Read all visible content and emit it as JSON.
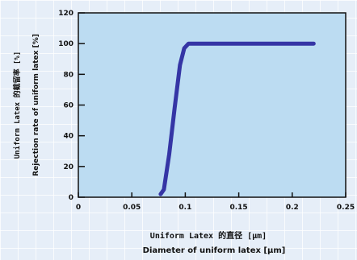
{
  "chart_data": {
    "type": "line",
    "xlabel_jp": "Uniform Latex 的直径 [μm]",
    "xlabel_en": "Diameter of uniform latex [μm]",
    "ylabel_jp": "Uniform Latex 的截留率 [%]",
    "ylabel_en": "Rejection rate of uniform latex [%]",
    "xlim": [
      0,
      0.25
    ],
    "ylim": [
      0,
      120
    ],
    "x_ticks": [
      0,
      0.05,
      0.1,
      0.15,
      0.2,
      0.25
    ],
    "x_tick_labels": [
      "0",
      "0.05",
      "0.1",
      "0.15",
      "0.2",
      "0.25"
    ],
    "y_ticks": [
      0,
      20,
      40,
      60,
      80,
      100,
      120
    ],
    "y_tick_labels": [
      "0",
      "20",
      "40",
      "60",
      "80",
      "100",
      "120"
    ],
    "series": [
      {
        "name": "",
        "color": "#3535a5",
        "x": [
          0.077,
          0.08,
          0.085,
          0.09,
          0.095,
          0.099,
          0.103,
          0.11,
          0.13,
          0.22
        ],
        "y": [
          2,
          5,
          28,
          58,
          86,
          97,
          100,
          100,
          100,
          100
        ]
      }
    ],
    "plot_bg": "#bcdcf2",
    "grid": false
  }
}
